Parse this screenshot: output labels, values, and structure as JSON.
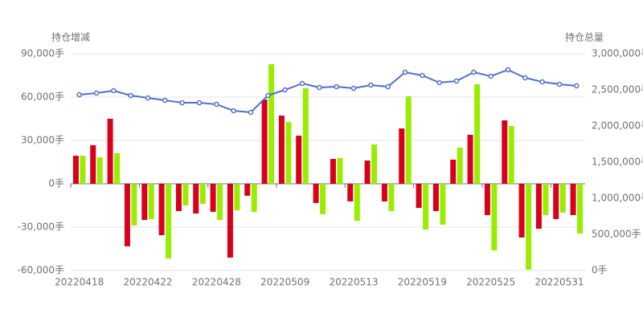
{
  "chart_data": {
    "type": "bar-line",
    "ylabel": "持仓增减",
    "y2label": "持仓总量",
    "categories": [
      "20220418",
      null,
      null,
      null,
      "20220422",
      null,
      null,
      null,
      "20220428",
      null,
      null,
      null,
      "20220509",
      null,
      null,
      null,
      "20220513",
      null,
      null,
      null,
      "20220519",
      null,
      null,
      null,
      "20220525",
      null,
      null,
      null,
      "20220531",
      null
    ],
    "series": [
      {
        "type": "bar",
        "color": "#d9001b",
        "values": [
          19400,
          26700,
          45000,
          -43300,
          -25000,
          -35600,
          -18900,
          -20600,
          -19400,
          -51100,
          -8300,
          58300,
          47200,
          33300,
          -13300,
          17200,
          -12200,
          16100,
          -12200,
          38300,
          -16700,
          -18900,
          16700,
          33900,
          -21700,
          43900,
          -37200,
          -31100,
          -24400,
          -21700
        ]
      },
      {
        "type": "bar",
        "color": "#99ee00",
        "values": [
          19400,
          18300,
          21100,
          -28900,
          -24400,
          -51700,
          -15000,
          -13900,
          -25000,
          -18300,
          -19400,
          82800,
          42800,
          66100,
          -21100,
          17800,
          -25600,
          27200,
          -18900,
          60600,
          -31700,
          -28300,
          25000,
          68900,
          -46100,
          40000,
          -59400,
          -21700,
          -20000,
          -34400
        ]
      },
      {
        "type": "line",
        "axis": "y2",
        "color": "#4e6fcf",
        "values": [
          2433000,
          2456000,
          2489000,
          2422000,
          2389000,
          2356000,
          2322000,
          2322000,
          2300000,
          2211000,
          2189000,
          2422000,
          2500000,
          2589000,
          2533000,
          2544000,
          2522000,
          2567000,
          2544000,
          2744000,
          2700000,
          2600000,
          2622000,
          2744000,
          2689000,
          2778000,
          2667000,
          2611000,
          2578000,
          2556000
        ]
      }
    ],
    "ylim": [
      -60000,
      90000
    ],
    "yticks": [
      {
        "value": -60000,
        "label": "-60,000手"
      },
      {
        "value": -30000,
        "label": "-30,000手"
      },
      {
        "value": 0,
        "label": "0手"
      },
      {
        "value": 30000,
        "label": "30,000手"
      },
      {
        "value": 60000,
        "label": "60,000手"
      },
      {
        "value": 90000,
        "label": "90,000手"
      }
    ],
    "y2lim": [
      0,
      3000000
    ],
    "y2ticks": [
      {
        "value": 0,
        "label": "0手"
      },
      {
        "value": 500000,
        "label": "500,000手"
      },
      {
        "value": 1000000,
        "label": "1,000,000手"
      },
      {
        "value": 1500000,
        "label": "1,500,000手"
      },
      {
        "value": 2000000,
        "label": "2,000,000手"
      },
      {
        "value": 2500000,
        "label": "2,500,000手"
      },
      {
        "value": 3000000,
        "label": "3,000,000手"
      }
    ],
    "grid": true
  }
}
